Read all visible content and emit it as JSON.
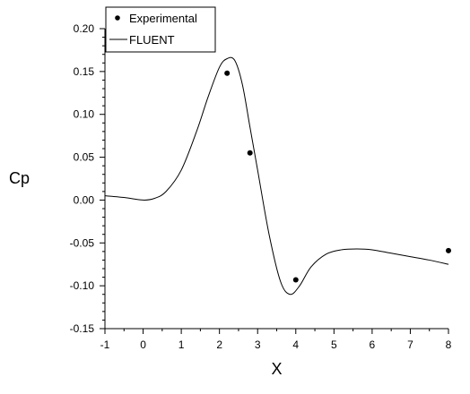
{
  "chart_data": {
    "type": "line",
    "title": "",
    "xlabel": "X",
    "ylabel": "Cp",
    "xlim": [
      -1,
      8
    ],
    "ylim": [
      -0.15,
      0.2
    ],
    "x_ticks": [
      -1,
      0,
      1,
      2,
      3,
      4,
      5,
      6,
      7,
      8
    ],
    "x_tick_labels": [
      "-1",
      "0",
      "1",
      "2",
      "3",
      "4",
      "5",
      "6",
      "7",
      "8"
    ],
    "y_ticks": [
      -0.15,
      -0.1,
      -0.05,
      0.0,
      0.05,
      0.1,
      0.15,
      0.2
    ],
    "y_tick_labels": [
      "-0.15",
      "-0.10",
      "-0.05",
      "0.00",
      "0.05",
      "0.10",
      "0.15",
      "0.20"
    ],
    "grid": false,
    "legend_position": "top-left",
    "series": [
      {
        "name": "Experimental",
        "kind": "scatter",
        "color": "#000000",
        "points": [
          {
            "x": 2.2,
            "y": 0.148
          },
          {
            "x": 2.8,
            "y": 0.055
          },
          {
            "x": 4.0,
            "y": -0.093
          },
          {
            "x": 8.0,
            "y": -0.059
          }
        ]
      },
      {
        "name": "FLUENT",
        "kind": "line",
        "color": "#000000",
        "points": [
          {
            "x": -1.0,
            "y": 0.005
          },
          {
            "x": -0.5,
            "y": 0.003
          },
          {
            "x": 0.0,
            "y": 0.0
          },
          {
            "x": 0.3,
            "y": 0.002
          },
          {
            "x": 0.6,
            "y": 0.01
          },
          {
            "x": 1.0,
            "y": 0.035
          },
          {
            "x": 1.4,
            "y": 0.08
          },
          {
            "x": 1.7,
            "y": 0.12
          },
          {
            "x": 2.0,
            "y": 0.155
          },
          {
            "x": 2.2,
            "y": 0.165
          },
          {
            "x": 2.4,
            "y": 0.163
          },
          {
            "x": 2.6,
            "y": 0.135
          },
          {
            "x": 2.8,
            "y": 0.085
          },
          {
            "x": 3.0,
            "y": 0.035
          },
          {
            "x": 3.3,
            "y": -0.04
          },
          {
            "x": 3.6,
            "y": -0.095
          },
          {
            "x": 3.85,
            "y": -0.11
          },
          {
            "x": 4.1,
            "y": -0.1
          },
          {
            "x": 4.4,
            "y": -0.078
          },
          {
            "x": 4.8,
            "y": -0.063
          },
          {
            "x": 5.2,
            "y": -0.058
          },
          {
            "x": 5.6,
            "y": -0.057
          },
          {
            "x": 6.0,
            "y": -0.058
          },
          {
            "x": 6.5,
            "y": -0.062
          },
          {
            "x": 7.0,
            "y": -0.066
          },
          {
            "x": 7.5,
            "y": -0.07
          },
          {
            "x": 8.0,
            "y": -0.075
          }
        ]
      }
    ]
  }
}
